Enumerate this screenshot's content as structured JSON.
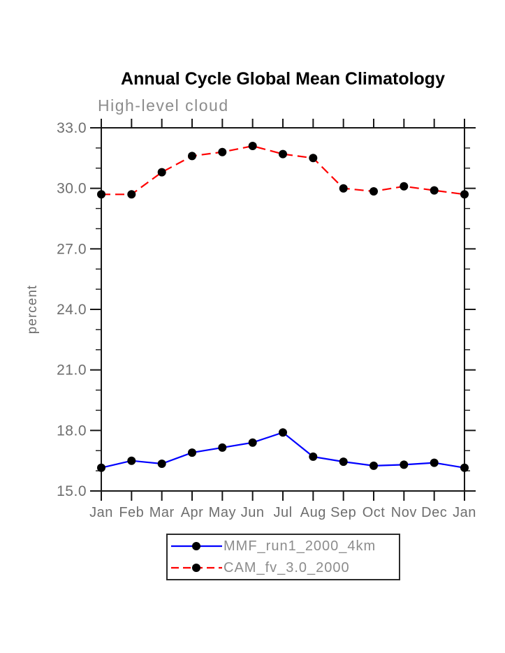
{
  "page": {
    "title": "Annual Cycle Global Mean Climatology",
    "subtitle": "High-level cloud"
  },
  "chart_data": {
    "type": "line",
    "title": "Annual Cycle Global Mean Climatology",
    "subtitle": "High-level cloud",
    "xlabel": "",
    "ylabel": "percent",
    "categories": [
      "Jan",
      "Feb",
      "Mar",
      "Apr",
      "May",
      "Jun",
      "Jul",
      "Aug",
      "Sep",
      "Oct",
      "Nov",
      "Dec",
      "Jan"
    ],
    "series": [
      {
        "name": "MMF_run1_2000_4km",
        "color": "#0000ff",
        "line_style": "solid",
        "marker": "circle",
        "marker_color": "#000000",
        "values": [
          16.15,
          16.5,
          16.35,
          16.9,
          17.15,
          17.4,
          17.9,
          16.7,
          16.45,
          16.25,
          16.3,
          16.4,
          16.15
        ]
      },
      {
        "name": "CAM_fv_3.0_2000",
        "color": "#ff0000",
        "line_style": "dashed",
        "marker": "circle",
        "marker_color": "#000000",
        "values": [
          29.7,
          29.7,
          30.8,
          31.6,
          31.8,
          32.1,
          31.7,
          31.5,
          30.0,
          29.85,
          30.1,
          29.9,
          29.7
        ]
      }
    ],
    "ylim": [
      15.0,
      33.0
    ],
    "yticks_major": [
      33.0,
      30.0,
      27.0,
      24.0,
      21.0,
      18.0,
      15.0
    ],
    "ytick_labels": [
      "33.0",
      "30.0",
      "27.0",
      "24.0",
      "21.0",
      "18.0",
      "15.0"
    ],
    "yminor_step": 1.0,
    "grid": false,
    "legend_position": "bottom"
  },
  "colors": {
    "axis": "#161616",
    "tick_text": "#6e6e6e",
    "subtitle_text": "#8c8c8c",
    "legend_text": "#8c8c8c",
    "series_blue": "#0000ff",
    "series_red": "#ff0000",
    "marker_black": "#000000"
  }
}
